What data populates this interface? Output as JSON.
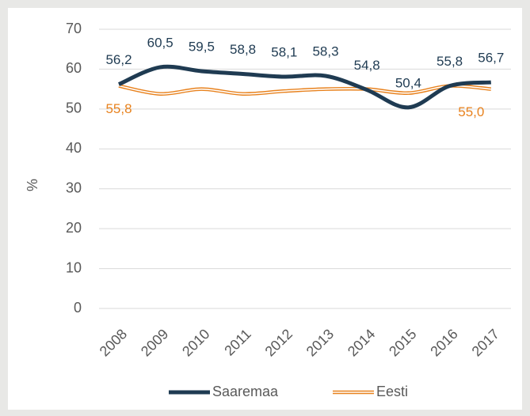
{
  "chart_data": {
    "type": "line",
    "y_label": "%",
    "categories": [
      "2008",
      "2009",
      "2010",
      "2011",
      "2012",
      "2013",
      "2014",
      "2015",
      "2016",
      "2017"
    ],
    "series": [
      {
        "name": "Saaremaa",
        "color": "#1f3b52",
        "values": [
          56.2,
          60.5,
          59.5,
          58.8,
          58.1,
          58.3,
          54.8,
          50.4,
          55.8,
          56.7
        ],
        "value_labels": [
          "56,2",
          "60,5",
          "59,5",
          "58,8",
          "58,1",
          "58,3",
          "54,8",
          "50,4",
          "55,8",
          "56,7"
        ]
      },
      {
        "name": "Eesti",
        "color": "#e8821e",
        "values": [
          55.8,
          53.8,
          55.0,
          53.8,
          54.5,
          55.0,
          55.0,
          54.0,
          55.8,
          55.0
        ],
        "value_labels": [
          "55,8",
          null,
          null,
          null,
          null,
          null,
          null,
          null,
          null,
          "55,0"
        ]
      }
    ],
    "ylim": [
      0,
      70
    ],
    "yticks": [
      0,
      10,
      20,
      30,
      40,
      50,
      60,
      70
    ],
    "grid": true,
    "legend": "bottom"
  }
}
